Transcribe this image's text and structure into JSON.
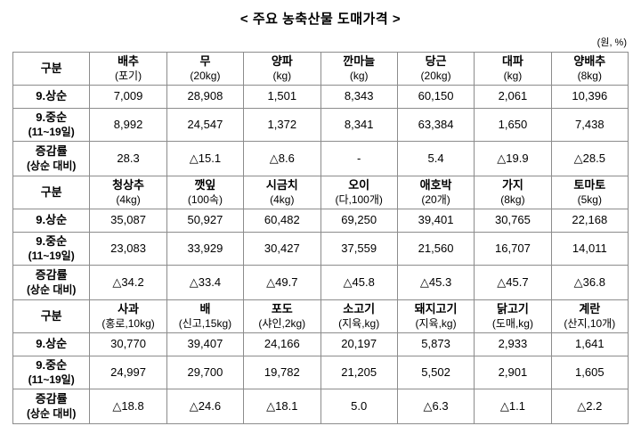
{
  "title": "< 주요 농축산물 도매가격 >",
  "unit_note": "(원, %)",
  "table": {
    "corner_label": "구분",
    "row_label_keys": [
      "sang",
      "jung",
      "rate"
    ],
    "sections": [
      {
        "columns": [
          {
            "name": "배추",
            "unit": "(포기)"
          },
          {
            "name": "무",
            "unit": "(20kg)"
          },
          {
            "name": "양파",
            "unit": "(kg)"
          },
          {
            "name": "깐마늘",
            "unit": "(kg)"
          },
          {
            "name": "당근",
            "unit": "(20kg)"
          },
          {
            "name": "대파",
            "unit": "(kg)"
          },
          {
            "name": "양배추",
            "unit": "(8kg)"
          }
        ],
        "rows": [
          {
            "label": "9.상순",
            "sublabel": "",
            "values": [
              "7,009",
              "28,908",
              "1,501",
              "8,343",
              "60,150",
              "2,061",
              "10,396"
            ]
          },
          {
            "label": "9.중순",
            "sublabel": "(11~19일)",
            "values": [
              "8,992",
              "24,547",
              "1,372",
              "8,341",
              "63,384",
              "1,650",
              "7,438"
            ]
          },
          {
            "label": "증감률",
            "sublabel": "(상순 대비)",
            "values": [
              "28.3",
              "△15.1",
              "△8.6",
              "-",
              "5.4",
              "△19.9",
              "△28.5"
            ]
          }
        ]
      },
      {
        "columns": [
          {
            "name": "청상추",
            "unit": "(4kg)"
          },
          {
            "name": "깻잎",
            "unit": "(100속)"
          },
          {
            "name": "시금치",
            "unit": "(4kg)"
          },
          {
            "name": "오이",
            "unit": "(다,100개)"
          },
          {
            "name": "애호박",
            "unit": "(20개)"
          },
          {
            "name": "가지",
            "unit": "(8kg)"
          },
          {
            "name": "토마토",
            "unit": "(5kg)"
          }
        ],
        "rows": [
          {
            "label": "9.상순",
            "sublabel": "",
            "values": [
              "35,087",
              "50,927",
              "60,482",
              "69,250",
              "39,401",
              "30,765",
              "22,168"
            ]
          },
          {
            "label": "9.중순",
            "sublabel": "(11~19일)",
            "values": [
              "23,083",
              "33,929",
              "30,427",
              "37,559",
              "21,560",
              "16,707",
              "14,011"
            ]
          },
          {
            "label": "증감률",
            "sublabel": "(상순 대비)",
            "values": [
              "△34.2",
              "△33.4",
              "△49.7",
              "△45.8",
              "△45.3",
              "△45.7",
              "△36.8"
            ]
          }
        ]
      },
      {
        "columns": [
          {
            "name": "사과",
            "unit": "(홍로,10kg)"
          },
          {
            "name": "배",
            "unit": "(신고,15kg)"
          },
          {
            "name": "포도",
            "unit": "(샤인,2kg)"
          },
          {
            "name": "소고기",
            "unit": "(지육,kg)"
          },
          {
            "name": "돼지고기",
            "unit": "(지육,kg)"
          },
          {
            "name": "닭고기",
            "unit": "(도매,kg)"
          },
          {
            "name": "계란",
            "unit": "(산지,10개)"
          }
        ],
        "rows": [
          {
            "label": "9.상순",
            "sublabel": "",
            "values": [
              "30,770",
              "39,407",
              "24,166",
              "20,197",
              "5,873",
              "2,933",
              "1,641"
            ]
          },
          {
            "label": "9.중순",
            "sublabel": "(11~19일)",
            "values": [
              "24,997",
              "29,700",
              "19,782",
              "21,205",
              "5,502",
              "2,901",
              "1,605"
            ]
          },
          {
            "label": "증감률",
            "sublabel": "(상순 대비)",
            "values": [
              "△18.8",
              "△24.6",
              "△18.1",
              "5.0",
              "△6.3",
              "△1.1",
              "△2.2"
            ]
          }
        ]
      }
    ]
  }
}
